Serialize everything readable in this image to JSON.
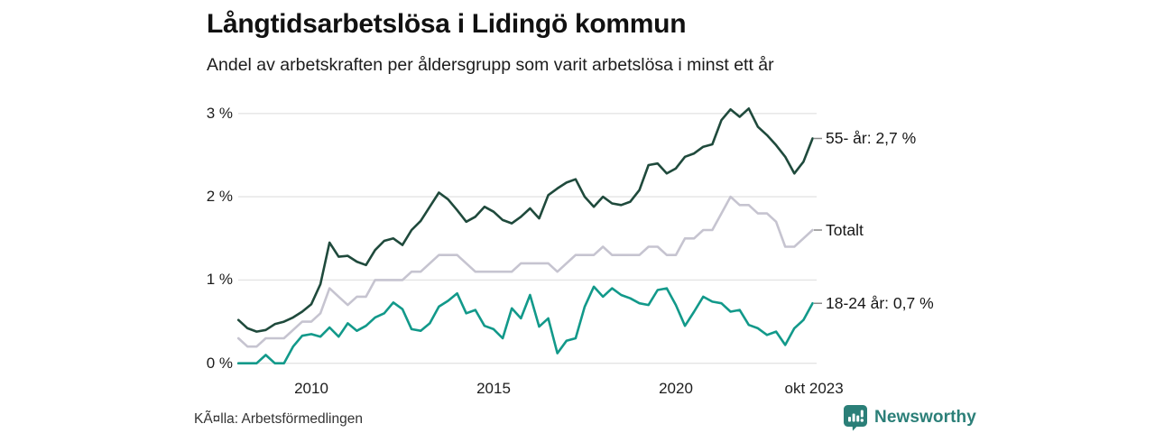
{
  "header": {
    "title": "Långtidsarbetslösa i Lidingö kommun",
    "subtitle": "Andel av arbetskraften per åldersgrupp som varit arbetslösa i minst ett år"
  },
  "chart_data": {
    "type": "line",
    "title": "Långtidsarbetslösa i Lidingö kommun",
    "subtitle": "Andel av arbetskraften per åldersgrupp som varit arbetslösa i minst ett år",
    "xlabel": "",
    "ylabel": "",
    "xlim": [
      2008.0,
      2023.83
    ],
    "ylim": [
      0,
      3.2
    ],
    "grid": "horizontal-only",
    "legend_position": "right-end-labels",
    "x_ticks": [
      {
        "value": 2010,
        "label": "2010"
      },
      {
        "value": 2015,
        "label": "2015"
      },
      {
        "value": 2020,
        "label": "2020"
      },
      {
        "value": 2023.79,
        "label": "okt 2023"
      }
    ],
    "y_ticks": [
      {
        "value": 3,
        "label": "3 %"
      },
      {
        "value": 2,
        "label": "2 %"
      },
      {
        "value": 1,
        "label": "1 %"
      },
      {
        "value": 0,
        "label": "0 %"
      }
    ],
    "x": [
      2008.0,
      2008.25,
      2008.5,
      2008.75,
      2009.0,
      2009.25,
      2009.5,
      2009.75,
      2010.0,
      2010.25,
      2010.5,
      2010.75,
      2011.0,
      2011.25,
      2011.5,
      2011.75,
      2012.0,
      2012.25,
      2012.5,
      2012.75,
      2013.0,
      2013.25,
      2013.5,
      2013.75,
      2014.0,
      2014.25,
      2014.5,
      2014.75,
      2015.0,
      2015.25,
      2015.5,
      2015.75,
      2016.0,
      2016.25,
      2016.5,
      2016.75,
      2017.0,
      2017.25,
      2017.5,
      2017.75,
      2018.0,
      2018.25,
      2018.5,
      2018.75,
      2019.0,
      2019.25,
      2019.5,
      2019.75,
      2020.0,
      2020.25,
      2020.5,
      2020.75,
      2021.0,
      2021.25,
      2021.5,
      2021.75,
      2022.0,
      2022.25,
      2022.5,
      2022.75,
      2023.0,
      2023.25,
      2023.5,
      2023.75
    ],
    "series": [
      {
        "name": "55- år",
        "end_label": "55- år: 2,7 %",
        "latest_value": "2,7 %",
        "color": "#1f4a3c",
        "values": [
          0.52,
          0.42,
          0.38,
          0.4,
          0.47,
          0.5,
          0.55,
          0.62,
          0.71,
          0.95,
          1.45,
          1.28,
          1.29,
          1.22,
          1.18,
          1.36,
          1.47,
          1.5,
          1.42,
          1.6,
          1.71,
          1.88,
          2.05,
          1.97,
          1.84,
          1.7,
          1.76,
          1.88,
          1.82,
          1.72,
          1.68,
          1.76,
          1.86,
          1.74,
          2.02,
          2.1,
          2.17,
          2.21,
          2.0,
          1.88,
          2.0,
          1.92,
          1.9,
          1.94,
          2.08,
          2.38,
          2.4,
          2.28,
          2.34,
          2.48,
          2.52,
          2.6,
          2.63,
          2.92,
          3.05,
          2.96,
          3.06,
          2.84,
          2.74,
          2.62,
          2.48,
          2.28,
          2.42,
          2.7
        ]
      },
      {
        "name": "Totalt",
        "end_label": "Totalt",
        "latest_value": "1,6 %",
        "color": "#c6c4d0",
        "values": [
          0.3,
          0.2,
          0.2,
          0.3,
          0.3,
          0.3,
          0.4,
          0.5,
          0.5,
          0.6,
          0.9,
          0.8,
          0.7,
          0.8,
          0.8,
          1.0,
          1.0,
          1.0,
          1.0,
          1.1,
          1.1,
          1.2,
          1.3,
          1.3,
          1.3,
          1.2,
          1.1,
          1.1,
          1.1,
          1.1,
          1.1,
          1.2,
          1.2,
          1.2,
          1.2,
          1.1,
          1.2,
          1.3,
          1.3,
          1.3,
          1.4,
          1.3,
          1.3,
          1.3,
          1.3,
          1.4,
          1.4,
          1.3,
          1.3,
          1.5,
          1.5,
          1.6,
          1.6,
          1.8,
          2.0,
          1.9,
          1.9,
          1.8,
          1.8,
          1.7,
          1.4,
          1.4,
          1.5,
          1.6
        ]
      },
      {
        "name": "18-24 år",
        "end_label": "18-24 år: 0,7 %",
        "latest_value": "0,7 %",
        "color": "#12998a",
        "values": [
          0.0,
          0.0,
          0.0,
          0.1,
          0.0,
          0.0,
          0.2,
          0.33,
          0.35,
          0.32,
          0.43,
          0.32,
          0.48,
          0.39,
          0.45,
          0.55,
          0.6,
          0.73,
          0.65,
          0.41,
          0.39,
          0.48,
          0.68,
          0.75,
          0.84,
          0.6,
          0.64,
          0.45,
          0.41,
          0.3,
          0.66,
          0.54,
          0.82,
          0.44,
          0.54,
          0.12,
          0.27,
          0.3,
          0.68,
          0.92,
          0.8,
          0.9,
          0.82,
          0.78,
          0.72,
          0.7,
          0.88,
          0.9,
          0.7,
          0.45,
          0.62,
          0.8,
          0.74,
          0.72,
          0.62,
          0.64,
          0.46,
          0.42,
          0.34,
          0.38,
          0.22,
          0.42,
          0.52,
          0.72
        ]
      }
    ]
  },
  "footer": {
    "source": "KÃ¤lla: Arbetsförmedlingen",
    "brand": "Newsworthy"
  },
  "colors": {
    "line_55": "#1f4a3c",
    "line_total": "#c6c4d0",
    "line_18_24": "#12998a",
    "gridline": "#e4e4e4",
    "connector": "#8a8a8a",
    "brand_teal": "#2b7f78",
    "text": "#1a1a1a"
  }
}
